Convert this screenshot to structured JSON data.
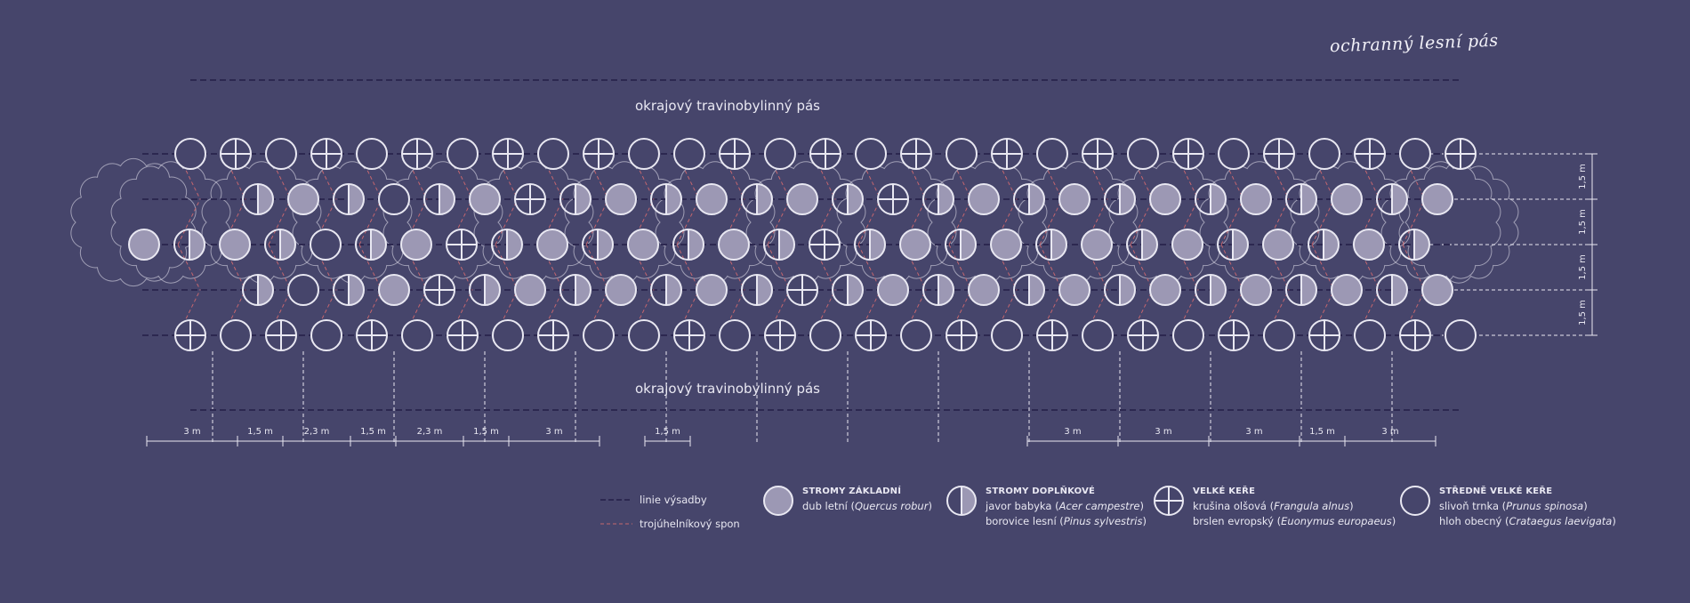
{
  "title": "ochranný lesní pás",
  "strip_label_top": "okrajový travinobylinný pás",
  "strip_label_bottom": "okrajový travinobylinný pás",
  "colors": {
    "background": "#46456b",
    "line": "#e9e8f2",
    "planting_line": "#2c2850",
    "triangle": "#c4666e",
    "tree_fill": "#9c98b4"
  },
  "spacing_left": [
    "3 m",
    "1,5 m",
    "2,3 m",
    "1,5 m",
    "2,3 m",
    "1,5 m",
    "3 m"
  ],
  "spacing_middle": [
    "1,5 m"
  ],
  "spacing_right": [
    "3 m",
    "3 m",
    "3 m",
    "1,5 m",
    "3 m"
  ],
  "spacing_vertical": [
    "1,5 m",
    "1,5 m",
    "1,5 m",
    "1,5 m"
  ],
  "legend": {
    "line_planting": "linie výsadby",
    "line_triangle": "trojúhelníkový spon",
    "main_trees": {
      "heading": "STROMY ZÁKLADNÍ",
      "species": [
        {
          "common": "dub letní",
          "latin": "Quercus robur"
        }
      ]
    },
    "supplementary_trees": {
      "heading": "STROMY DOPLŇKOVÉ",
      "species": [
        {
          "common": "javor babyka",
          "latin": "Acer campestre"
        },
        {
          "common": "borovice lesní",
          "latin": "Pinus sylvestris"
        }
      ]
    },
    "large_shrubs": {
      "heading": "VELKÉ KEŘE",
      "species": [
        {
          "common": "krušina olšová",
          "latin": "Frangula alnus"
        },
        {
          "common": "brslen evropský",
          "latin": "Euonymus europaeus"
        }
      ]
    },
    "medium_shrubs": {
      "heading": "STŘEDNĚ VELKÉ KEŘE",
      "species": [
        {
          "common": "slivoň trnka",
          "latin": "Prunus spinosa"
        },
        {
          "common": "hloh obecný",
          "latin": "Crataegus laevigata"
        }
      ]
    }
  }
}
